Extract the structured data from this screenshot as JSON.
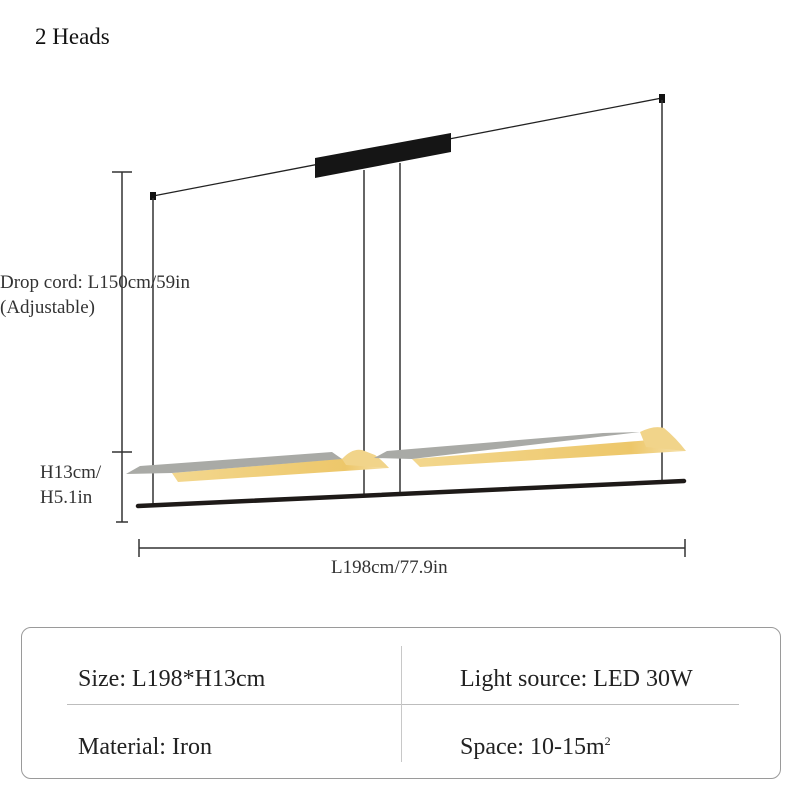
{
  "title": "2 Heads",
  "dimensions": {
    "drop_cord_line1": "Drop cord: L150cm/59in",
    "drop_cord_line2": "(Adjustable)",
    "height_line1": "H13cm/",
    "height_line2": "H5.1in",
    "length": "L198cm/77.9in"
  },
  "colors": {
    "shade_gray": "#a9aaa6",
    "light_warm": "#f0cf7a",
    "bar": "#1e1a18",
    "canopy": "#151515"
  },
  "specs": {
    "size": "Size: L198*H13cm",
    "light_source": "Light source: LED 30W",
    "material": "Material: Iron",
    "space": "Space: 10-15m",
    "space_sup": "2"
  }
}
